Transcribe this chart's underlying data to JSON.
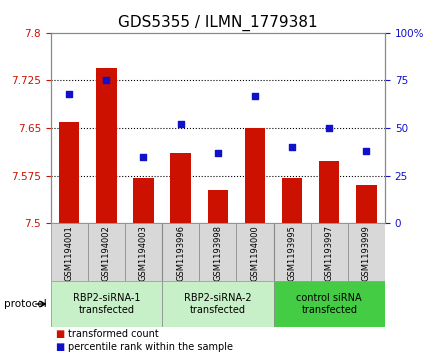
{
  "title": "GDS5355 / ILMN_1779381",
  "samples": [
    "GSM1194001",
    "GSM1194002",
    "GSM1194003",
    "GSM1193996",
    "GSM1193998",
    "GSM1194000",
    "GSM1193995",
    "GSM1193997",
    "GSM1193999"
  ],
  "transformed_counts": [
    7.66,
    7.745,
    7.572,
    7.61,
    7.553,
    7.65,
    7.572,
    7.598,
    7.56
  ],
  "percentile_ranks": [
    68,
    75,
    35,
    52,
    37,
    67,
    40,
    50,
    38
  ],
  "ylim_left": [
    7.5,
    7.8
  ],
  "ylim_right": [
    0,
    100
  ],
  "yticks_left": [
    7.5,
    7.575,
    7.65,
    7.725,
    7.8
  ],
  "yticks_right": [
    0,
    25,
    50,
    75,
    100
  ],
  "ytick_labels_left": [
    "7.5",
    "7.575",
    "7.65",
    "7.725",
    "7.8"
  ],
  "ytick_labels_right": [
    "0",
    "25",
    "50",
    "75",
    "100%"
  ],
  "bar_color": "#cc1100",
  "dot_color": "#1111cc",
  "bar_width": 0.55,
  "groups": [
    {
      "label": "RBP2-siRNA-1\ntransfected",
      "start": 0,
      "end": 2,
      "color": "#c8f0c8"
    },
    {
      "label": "RBP2-siRNA-2\ntransfected",
      "start": 3,
      "end": 5,
      "color": "#c8f0c8"
    },
    {
      "label": "control siRNA\ntransfected",
      "start": 6,
      "end": 8,
      "color": "#44cc44"
    }
  ],
  "protocol_label": "protocol",
  "legend_bar_label": "transformed count",
  "legend_dot_label": "percentile rank within the sample",
  "grid_linestyle": "dotted",
  "sample_box_color": "#d8d8d8",
  "plot_bg_color": "#ffffff",
  "title_fontsize": 11,
  "tick_fontsize": 7.5,
  "sample_fontsize": 6,
  "group_fontsize": 7,
  "legend_fontsize": 7
}
